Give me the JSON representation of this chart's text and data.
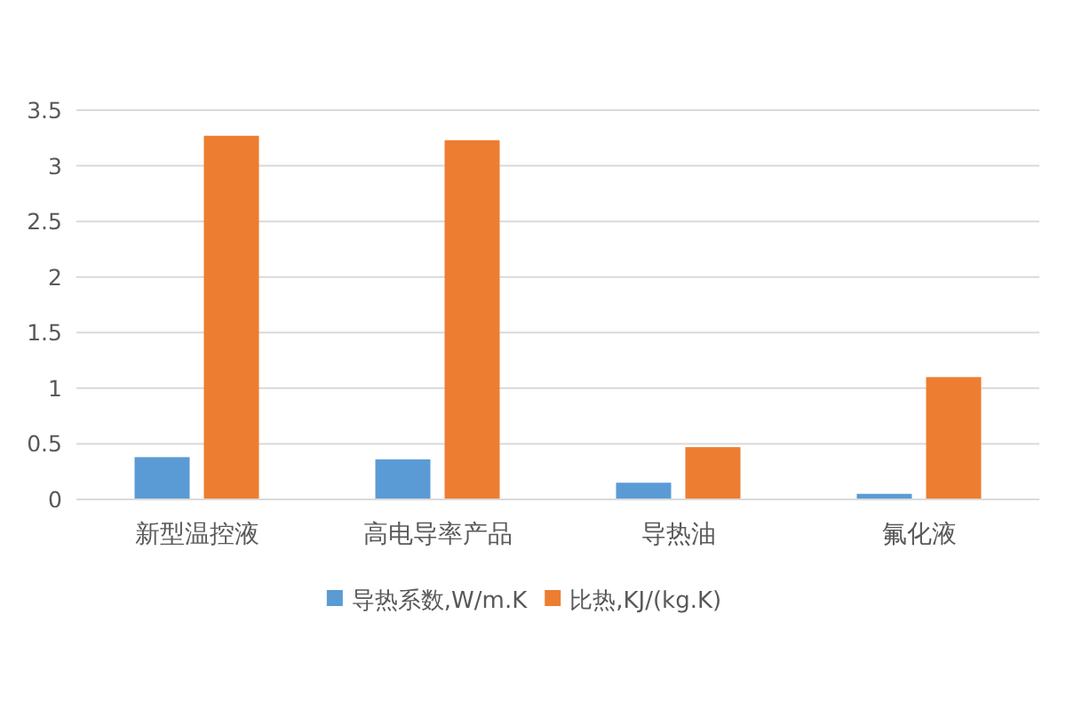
{
  "chart_data": {
    "type": "bar",
    "categories": [
      "新型温控液",
      "高电导率产品",
      "导热油",
      "氟化液"
    ],
    "series": [
      {
        "name": "导热系数,W/m.K",
        "color": "#5b9bd5",
        "values": [
          0.38,
          0.36,
          0.15,
          0.05
        ]
      },
      {
        "name": "比热,KJ/(kg.K)",
        "color": "#ed7d31",
        "values": [
          3.27,
          3.23,
          0.47,
          1.1
        ]
      }
    ],
    "ylim": [
      0,
      3.5
    ],
    "yticks": [
      0,
      0.5,
      1,
      1.5,
      2,
      2.5,
      3,
      3.5
    ],
    "grid": "y",
    "legend": "bottom"
  }
}
